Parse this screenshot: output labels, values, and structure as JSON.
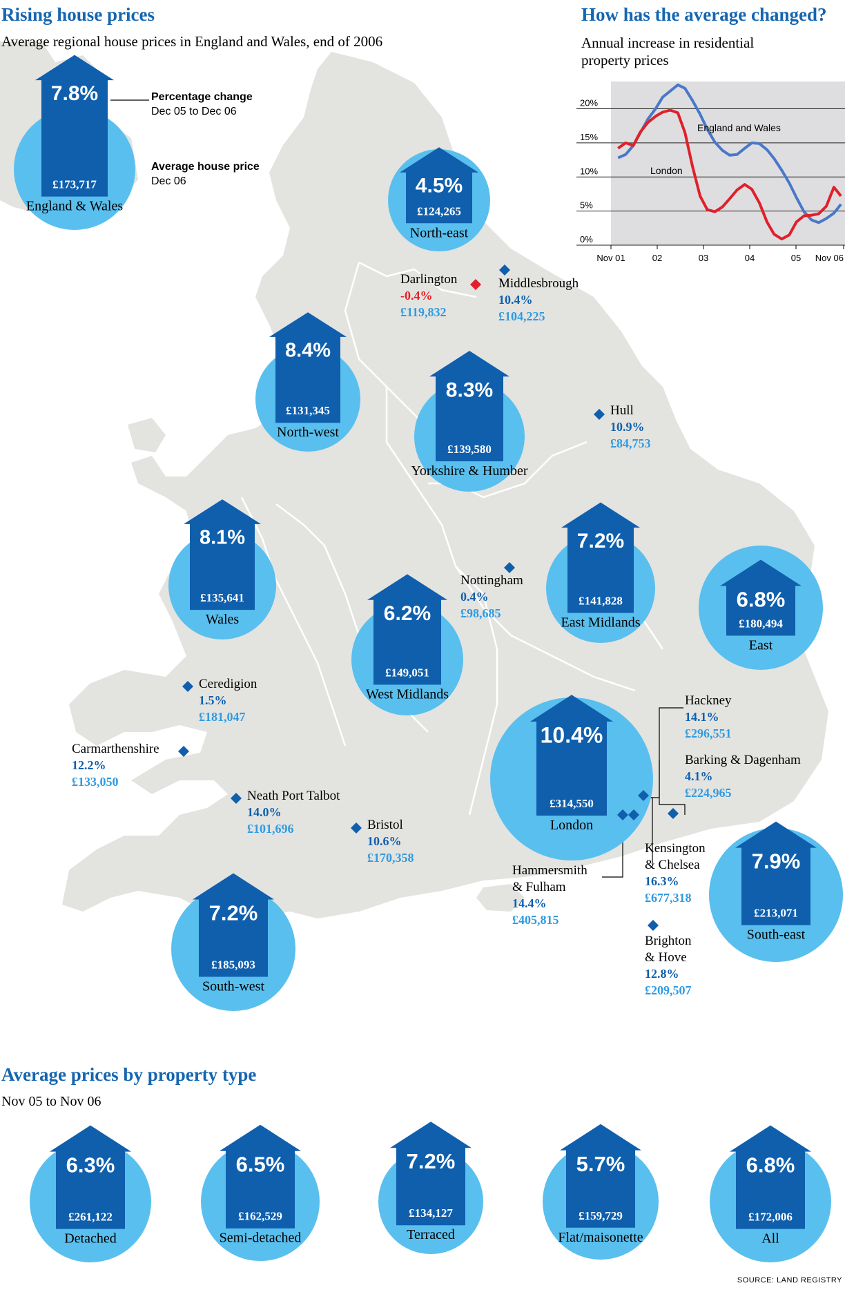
{
  "header": {
    "title": "Rising house prices",
    "subtitle": "Average regional house prices in England and Wales, end of 2006"
  },
  "legend": {
    "pct": "7.8%",
    "price": "£173,717",
    "name": "England & Wales",
    "change_label": "Percentage change",
    "change_period": "Dec 05 to Dec 06",
    "price_label": "Average house price",
    "price_period": "Dec 06"
  },
  "regions": [
    {
      "pct": "4.5%",
      "price": "£124,265",
      "name": "North-east"
    },
    {
      "pct": "8.4%",
      "price": "£131,345",
      "name": "North-west"
    },
    {
      "pct": "8.3%",
      "price": "£139,580",
      "name": "Yorkshire & Humber"
    },
    {
      "pct": "8.1%",
      "price": "£135,641",
      "name": "Wales"
    },
    {
      "pct": "7.2%",
      "price": "£141,828",
      "name": "East Midlands"
    },
    {
      "pct": "6.8%",
      "price": "£180,494",
      "name": "East"
    },
    {
      "pct": "6.2%",
      "price": "£149,051",
      "name": "West Midlands"
    },
    {
      "pct": "10.4%",
      "price": "£314,550",
      "name": "London"
    },
    {
      "pct": "7.9%",
      "price": "£213,071",
      "name": "South-east"
    },
    {
      "pct": "7.2%",
      "price": "£185,093",
      "name": "South-west"
    }
  ],
  "places": [
    {
      "name": "Darlington",
      "pct": "-0.4%",
      "price": "£119,832",
      "negative": true
    },
    {
      "name": "Middlesbrough",
      "pct": "10.4%",
      "price": "£104,225"
    },
    {
      "name": "Hull",
      "pct": "10.9%",
      "price": "£84,753"
    },
    {
      "name": "Nottingham",
      "pct": "0.4%",
      "price": "£98,685"
    },
    {
      "name": "Ceredigion",
      "pct": "1.5%",
      "price": "£181,047"
    },
    {
      "name": "Carmarthenshire",
      "pct": "12.2%",
      "price": "£133,050"
    },
    {
      "name": "Neath Port Talbot",
      "pct": "14.0%",
      "price": "£101,696"
    },
    {
      "name": "Bristol",
      "pct": "10.6%",
      "price": "£170,358"
    },
    {
      "name": "Hackney",
      "pct": "14.1%",
      "price": "£296,551"
    },
    {
      "name": "Barking & Dagenham",
      "pct": "4.1%",
      "price": "£224,965"
    },
    {
      "name": "Kensington\n& Chelsea",
      "pct": "16.3%",
      "price": "£677,318"
    },
    {
      "name": "Hammersmith\n& Fulham",
      "pct": "14.4%",
      "price": "£405,815"
    },
    {
      "name": "Brighton\n& Hove",
      "pct": "12.8%",
      "price": "£209,507"
    }
  ],
  "chart_data": {
    "type": "line",
    "title": "How has the average changed?",
    "subtitle": "Annual increase in residential property prices",
    "x_ticks": [
      "Nov 01",
      "02",
      "03",
      "04",
      "05",
      "Nov 06"
    ],
    "y_ticks": [
      "0%",
      "5%",
      "10%",
      "15%",
      "20%"
    ],
    "ylim": [
      0,
      24
    ],
    "x": [
      2001.83,
      2002,
      2002.17,
      2002.33,
      2002.5,
      2002.67,
      2002.83,
      2003,
      2003.17,
      2003.33,
      2003.5,
      2003.67,
      2003.83,
      2004,
      2004.17,
      2004.33,
      2004.5,
      2004.67,
      2004.83,
      2005,
      2005.17,
      2005.33,
      2005.5,
      2005.67,
      2005.83,
      2006,
      2006.17,
      2006.33,
      2006.5,
      2006.67,
      2006.83
    ],
    "series": [
      {
        "name": "England and Wales",
        "color": "#4a78c8",
        "values": [
          12.8,
          13.3,
          14.6,
          16.5,
          18.5,
          20.0,
          21.7,
          22.6,
          23.5,
          23.0,
          21.2,
          19.2,
          17.0,
          15.1,
          13.9,
          13.2,
          13.3,
          14.2,
          15.0,
          14.9,
          14.0,
          12.7,
          11.0,
          9.1,
          7.0,
          4.9,
          3.7,
          3.3,
          3.9,
          4.7,
          6.0
        ]
      },
      {
        "name": "London",
        "color": "#e0202a",
        "values": [
          14.2,
          15.0,
          14.6,
          16.6,
          18.0,
          18.9,
          19.5,
          19.8,
          19.4,
          16.5,
          11.5,
          7.2,
          5.2,
          4.9,
          5.6,
          6.8,
          8.1,
          8.9,
          8.2,
          6.2,
          3.4,
          1.6,
          0.9,
          1.5,
          3.4,
          4.3,
          4.4,
          4.6,
          5.7,
          8.5,
          7.2
        ]
      }
    ]
  },
  "property": {
    "title": "Average prices by property type",
    "period": "Nov 05 to Nov 06",
    "items": [
      {
        "pct": "6.3%",
        "price": "£261,122",
        "name": "Detached"
      },
      {
        "pct": "6.5%",
        "price": "£162,529",
        "name": "Semi-detached"
      },
      {
        "pct": "7.2%",
        "price": "£134,127",
        "name": "Terraced"
      },
      {
        "pct": "5.7%",
        "price": "£159,729",
        "name": "Flat/maisonette"
      },
      {
        "pct": "6.8%",
        "price": "£172,006",
        "name": "All"
      }
    ]
  },
  "source": "SOURCE: LAND REGISTRY",
  "colors": {
    "title": "#1565b0",
    "house": "#0f5fad",
    "circle": "#59bfee",
    "map": "#e3e3e0",
    "chart_bg": "#dedee0",
    "negative": "#e0202a",
    "price_blue": "#2f9be0"
  }
}
